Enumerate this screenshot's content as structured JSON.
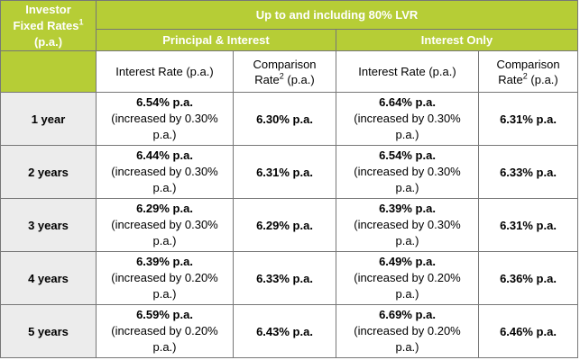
{
  "header": {
    "corner_line1": "Investor",
    "corner_line2": "Fixed Rates",
    "corner_sup": "1",
    "corner_line3": "(p.a.)",
    "lvr_title": "Up to and including 80% LVR",
    "group_pi": "Principal & Interest",
    "group_io": "Interest Only",
    "col_interest_pi": "Interest Rate (p.a.)",
    "col_comparison_pi_line1": "Comparison",
    "col_comparison_pi_word": "Rate",
    "col_comparison_pi_sup": "2",
    "col_comparison_pi_suffix": " (p.a.)",
    "col_interest_io": "Interest Rate (p.a.)",
    "col_comparison_io_line1": "Comparison",
    "col_comparison_io_word": "Rate",
    "col_comparison_io_sup": "2",
    "col_comparison_io_suffix": " (p.a.)"
  },
  "rows": [
    {
      "term": "1 year",
      "pi_rate": "6.54% p.a.",
      "pi_note1": "(increased by 0.30%",
      "pi_note2": "p.a.)",
      "pi_comparison": "6.30% p.a.",
      "io_rate": "6.64% p.a.",
      "io_note1": "(increased by 0.30%",
      "io_note2": "p.a.)",
      "io_comparison": "6.31% p.a."
    },
    {
      "term": "2 years",
      "pi_rate": "6.44% p.a.",
      "pi_note1": "(increased by 0.30%",
      "pi_note2": "p.a.)",
      "pi_comparison": "6.31% p.a.",
      "io_rate": "6.54% p.a.",
      "io_note1": "(increased by 0.30%",
      "io_note2": "p.a.)",
      "io_comparison": "6.33% p.a."
    },
    {
      "term": "3 years",
      "pi_rate": "6.29% p.a.",
      "pi_note1": "(increased by 0.30%",
      "pi_note2": "p.a.)",
      "pi_comparison": "6.29% p.a.",
      "io_rate": "6.39% p.a.",
      "io_note1": "(increased by 0.30%",
      "io_note2": "p.a.)",
      "io_comparison": "6.31% p.a."
    },
    {
      "term": "4 years",
      "pi_rate": "6.39% p.a.",
      "pi_note1": "(increased by 0.20%",
      "pi_note2": "p.a.)",
      "pi_comparison": "6.33% p.a.",
      "io_rate": "6.49% p.a.",
      "io_note1": "(increased by 0.20%",
      "io_note2": "p.a.)",
      "io_comparison": "6.36% p.a."
    },
    {
      "term": "5 years",
      "pi_rate": "6.59% p.a.",
      "pi_note1": "(increased by 0.20%",
      "pi_note2": "p.a.)",
      "pi_comparison": "6.43% p.a.",
      "io_rate": "6.69% p.a.",
      "io_note1": "(increased by 0.20%",
      "io_note2": "p.a.)",
      "io_comparison": "6.46% p.a."
    }
  ],
  "colors": {
    "header_green": "#b6cd36",
    "term_grey": "#ececec",
    "border": "#777777"
  }
}
